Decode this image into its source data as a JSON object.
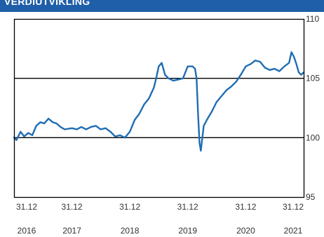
{
  "header": {
    "title": "VERDIUTVIKLING"
  },
  "colors": {
    "header_bg": "#1f5ea8",
    "line": "#1f6db3",
    "frame": "#000000",
    "text": "#333333"
  },
  "chart_data": {
    "type": "line",
    "title": "VERDIUTVIKLING",
    "ylim": [
      95,
      110
    ],
    "yticks": [
      {
        "value": 110,
        "label": "110"
      },
      {
        "value": 105,
        "label": "105"
      },
      {
        "value": 100,
        "label": "100"
      },
      {
        "value": 95,
        "label": "95"
      }
    ],
    "gridlines": [
      100,
      105
    ],
    "xlim": [
      "2016-12-31",
      "2021-12-31"
    ],
    "xticks": [
      {
        "date": "2016-12-31",
        "label_top": "31.12",
        "label_bottom": "2016"
      },
      {
        "date": "2017-12-31",
        "label_top": "31.12",
        "label_bottom": "2017"
      },
      {
        "date": "2018-12-31",
        "label_top": "31.12",
        "label_bottom": "2018"
      },
      {
        "date": "2019-12-31",
        "label_top": "31.12",
        "label_bottom": "2019"
      },
      {
        "date": "2020-12-31",
        "label_top": "31.12",
        "label_bottom": "2020"
      },
      {
        "date": "2021-12-31",
        "label_top": "31.12",
        "label_bottom": "2021"
      }
    ],
    "series": [
      {
        "points": [
          [
            "2016-12-31",
            100.0
          ],
          [
            "2017-01-15",
            99.8
          ],
          [
            "2017-02-10",
            100.5
          ],
          [
            "2017-03-05",
            100.1
          ],
          [
            "2017-03-31",
            100.4
          ],
          [
            "2017-04-25",
            100.2
          ],
          [
            "2017-05-20",
            101.0
          ],
          [
            "2017-06-15",
            101.3
          ],
          [
            "2017-07-10",
            101.2
          ],
          [
            "2017-08-05",
            101.6
          ],
          [
            "2017-09-01",
            101.3
          ],
          [
            "2017-09-25",
            101.2
          ],
          [
            "2017-10-20",
            100.9
          ],
          [
            "2017-11-15",
            100.7
          ],
          [
            "2017-12-31",
            100.8
          ],
          [
            "2018-01-31",
            100.7
          ],
          [
            "2018-02-28",
            100.9
          ],
          [
            "2018-03-31",
            100.7
          ],
          [
            "2018-04-30",
            100.9
          ],
          [
            "2018-05-31",
            101.0
          ],
          [
            "2018-06-30",
            100.7
          ],
          [
            "2018-07-31",
            100.8
          ],
          [
            "2018-08-31",
            100.5
          ],
          [
            "2018-09-30",
            100.1
          ],
          [
            "2018-10-31",
            100.2
          ],
          [
            "2018-11-30",
            100.0
          ],
          [
            "2018-12-31",
            100.5
          ],
          [
            "2019-01-31",
            101.5
          ],
          [
            "2019-02-28",
            102.0
          ],
          [
            "2019-03-31",
            102.8
          ],
          [
            "2019-04-30",
            103.3
          ],
          [
            "2019-05-31",
            104.2
          ],
          [
            "2019-06-15",
            105.0
          ],
          [
            "2019-07-01",
            106.0
          ],
          [
            "2019-07-20",
            106.3
          ],
          [
            "2019-08-10",
            105.3
          ],
          [
            "2019-09-01",
            105.0
          ],
          [
            "2019-10-01",
            104.8
          ],
          [
            "2019-11-01",
            104.9
          ],
          [
            "2019-12-01",
            105.0
          ],
          [
            "2019-12-31",
            106.0
          ],
          [
            "2020-01-31",
            106.0
          ],
          [
            "2020-02-15",
            105.8
          ],
          [
            "2020-02-25",
            105.0
          ],
          [
            "2020-03-05",
            102.0
          ],
          [
            "2020-03-15",
            99.5
          ],
          [
            "2020-03-23",
            98.9
          ],
          [
            "2020-04-10",
            101.0
          ],
          [
            "2020-04-30",
            101.5
          ],
          [
            "2020-05-31",
            102.2
          ],
          [
            "2020-06-30",
            103.0
          ],
          [
            "2020-07-31",
            103.5
          ],
          [
            "2020-08-31",
            104.0
          ],
          [
            "2020-09-30",
            104.3
          ],
          [
            "2020-10-31",
            104.7
          ],
          [
            "2020-11-30",
            105.3
          ],
          [
            "2020-12-31",
            106.0
          ],
          [
            "2021-01-31",
            106.2
          ],
          [
            "2021-02-28",
            106.5
          ],
          [
            "2021-03-31",
            106.4
          ],
          [
            "2021-04-30",
            105.9
          ],
          [
            "2021-05-31",
            105.7
          ],
          [
            "2021-06-30",
            105.8
          ],
          [
            "2021-07-31",
            105.6
          ],
          [
            "2021-08-31",
            106.0
          ],
          [
            "2021-09-30",
            106.3
          ],
          [
            "2021-10-15",
            107.2
          ],
          [
            "2021-10-31",
            106.8
          ],
          [
            "2021-11-15",
            106.2
          ],
          [
            "2021-11-30",
            105.5
          ],
          [
            "2021-12-15",
            105.3
          ],
          [
            "2021-12-31",
            105.5
          ]
        ]
      }
    ]
  }
}
